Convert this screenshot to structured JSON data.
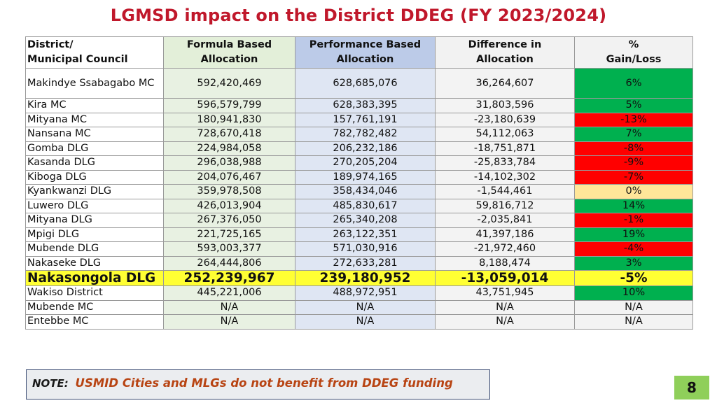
{
  "title": "LGMSD impact on the District DDEG (FY 2023/2024)",
  "table": {
    "headers": {
      "district_line1": "District/",
      "district_line2": "Municipal Council",
      "formula_line1": "Formula Based",
      "formula_line2": "Allocation",
      "performance_line1": "Performance Based",
      "performance_line2": "Allocation",
      "difference_line1": "Difference in",
      "difference_line2": "Allocation",
      "gain_line1": "%",
      "gain_line2": "Gain/Loss"
    },
    "rows": [
      {
        "district": "Makindye Ssabagabo MC",
        "formula": "592,420,469",
        "performance": "628,685,076",
        "difference": "36,264,607",
        "gain": "6%",
        "status_color": "#00b04f"
      },
      {
        "district": "Kira MC",
        "formula": "596,579,799",
        "performance": "628,383,395",
        "difference": "31,803,596",
        "gain": "5%",
        "status_color": "#00b04f"
      },
      {
        "district": "Mityana MC",
        "formula": "180,941,830",
        "performance": "157,761,191",
        "difference": "-23,180,639",
        "gain": "-13%",
        "status_color": "#ff0000"
      },
      {
        "district": "Nansana MC",
        "formula": "728,670,418",
        "performance": "782,782,482",
        "difference": "54,112,063",
        "gain": "7%",
        "status_color": "#00b04f"
      },
      {
        "district": "Gomba DLG",
        "formula": "224,984,058",
        "performance": "206,232,186",
        "difference": "-18,751,871",
        "gain": "-8%",
        "status_color": "#ff0000"
      },
      {
        "district": "Kasanda DLG",
        "formula": "296,038,988",
        "performance": "270,205,204",
        "difference": "-25,833,784",
        "gain": "-9%",
        "status_color": "#ff0000"
      },
      {
        "district": "Kiboga DLG",
        "formula": "204,076,467",
        "performance": "189,974,165",
        "difference": "-14,102,302",
        "gain": "-7%",
        "status_color": "#ff0000"
      },
      {
        "district": "Kyankwanzi DLG",
        "formula": "359,978,508",
        "performance": "358,434,046",
        "difference": "-1,544,461",
        "gain": "0%",
        "status_color": "#ffe699"
      },
      {
        "district": "Luwero DLG",
        "formula": "426,013,904",
        "performance": "485,830,617",
        "difference": "59,816,712",
        "gain": "14%",
        "status_color": "#00b04f"
      },
      {
        "district": "Mityana DLG",
        "formula": "267,376,050",
        "performance": "265,340,208",
        "difference": "-2,035,841",
        "gain": "-1%",
        "status_color": "#ff0000"
      },
      {
        "district": "Mpigi DLG",
        "formula": "221,725,165",
        "performance": "263,122,351",
        "difference": "41,397,186",
        "gain": "19%",
        "status_color": "#00b04f"
      },
      {
        "district": "Mubende DLG",
        "formula": "593,003,377",
        "performance": "571,030,916",
        "difference": "-21,972,460",
        "gain": "-4%",
        "status_color": "#ff0000"
      },
      {
        "district": "Nakaseke DLG",
        "formula": "264,444,806",
        "performance": "272,633,281",
        "difference": "8,188,474",
        "gain": "3%",
        "status_color": "#00b04f"
      },
      {
        "district": "Nakasongola DLG",
        "formula": "252,239,967",
        "performance": "239,180,952",
        "difference": "-13,059,014",
        "gain": "-5%",
        "status_color": "#ffff33"
      },
      {
        "district": "Wakiso District",
        "formula": "445,221,006",
        "performance": "488,972,951",
        "difference": "43,751,945",
        "gain": "10%",
        "status_color": "#00b04f"
      },
      {
        "district": "Mubende MC",
        "formula": "N/A",
        "performance": "N/A",
        "difference": "N/A",
        "gain": "N/A",
        "status_color": "#f3f3f3"
      },
      {
        "district": "Entebbe MC",
        "formula": "N/A",
        "performance": "N/A",
        "difference": "N/A",
        "gain": "N/A",
        "status_color": "#f3f3f3"
      }
    ]
  },
  "note": {
    "label": "NOTE:",
    "text": "USMID Cities and MLGs do not benefit from DDEG funding"
  },
  "page_number": "8",
  "colors": {
    "title": "#c0182b",
    "gain": "#00b04f",
    "loss": "#ff0000",
    "neutral": "#ffe699",
    "highlight": "#ffff33",
    "note_text": "#b84413",
    "page_badge": "#8fcf5a"
  }
}
